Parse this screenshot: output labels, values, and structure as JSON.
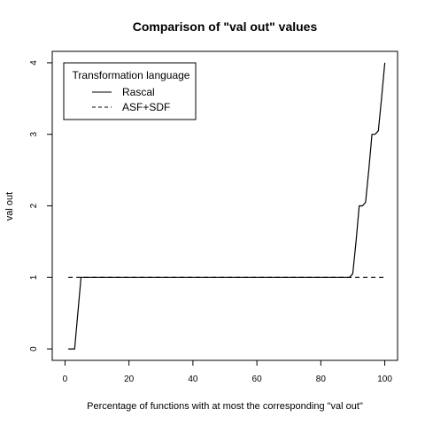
{
  "chart_data": {
    "type": "line",
    "title": "Comparison of \"val out\" values",
    "xlabel": "Percentage of functions with at most the corresponding \"val out\"",
    "ylabel": "val out",
    "xlim": [
      -4,
      104
    ],
    "ylim": [
      -0.16,
      4.16
    ],
    "xticks": [
      0,
      20,
      40,
      60,
      80,
      100
    ],
    "yticks": [
      0,
      1,
      2,
      3,
      4
    ],
    "grid": false,
    "legend": {
      "title": "Transformation language",
      "position": "top-left"
    },
    "series": [
      {
        "name": "Rascal",
        "line": "solid",
        "color": "#000000",
        "x": [
          1,
          3,
          5,
          6,
          40,
          80,
          89,
          90,
          91,
          92,
          93,
          94,
          95,
          96,
          97,
          98,
          99,
          100
        ],
        "y": [
          0,
          0,
          1,
          1,
          1,
          1,
          1,
          1.05,
          1.5,
          2,
          2,
          2.05,
          2.5,
          3,
          3,
          3.05,
          3.5,
          4
        ]
      },
      {
        "name": "ASF+SDF",
        "line": "dashed",
        "color": "#000000",
        "x": [
          1,
          100
        ],
        "y": [
          1,
          1
        ]
      }
    ]
  }
}
